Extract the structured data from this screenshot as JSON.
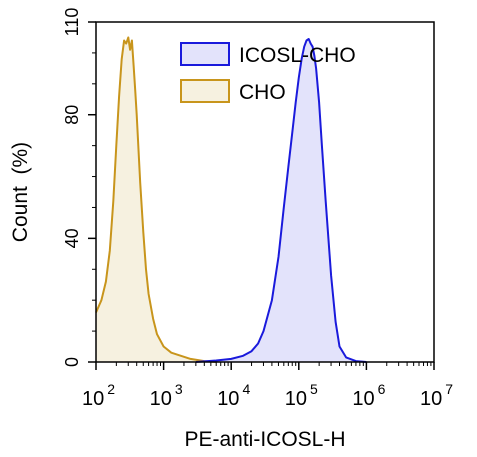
{
  "chart_data": {
    "type": "area",
    "title": "",
    "xlabel": "PE-anti-ICOSL-H",
    "ylabel": "Count  (%)",
    "x_scale": "log",
    "xlim": [
      100,
      10000000
    ],
    "ylim": [
      0,
      110
    ],
    "x_ticks": [
      {
        "base": "10",
        "exp": "2"
      },
      {
        "base": "10",
        "exp": "3"
      },
      {
        "base": "10",
        "exp": "4"
      },
      {
        "base": "10",
        "exp": "5"
      },
      {
        "base": "10",
        "exp": "6"
      },
      {
        "base": "10",
        "exp": "7"
      }
    ],
    "y_ticks": [
      "0",
      "40",
      "80",
      "110"
    ],
    "y_tick_values": [
      0,
      40,
      80,
      110
    ],
    "x_tick_values": [
      100,
      1000,
      10000,
      100000,
      1000000,
      10000000
    ],
    "grid": false,
    "legend_position": "top-right",
    "series": [
      {
        "name": "ICOSL-CHO",
        "line_color": "#1a1adc",
        "fill_color": "#e3e3fb",
        "x": [
          3000,
          6000,
          10000,
          15000,
          20000,
          25000,
          30000,
          40000,
          50000,
          60000,
          70000,
          80000,
          90000,
          100000,
          110000,
          120000,
          130000,
          140000,
          150000,
          160000,
          170000,
          180000,
          200000,
          220000,
          250000,
          300000,
          350000,
          400000,
          500000,
          700000,
          1000000
        ],
        "values": [
          0,
          0.5,
          1,
          2,
          3.5,
          6,
          10,
          20,
          34,
          50,
          63,
          74,
          84,
          92,
          98,
          102,
          104,
          104.5,
          103,
          102,
          99,
          95,
          84,
          70,
          52,
          28,
          13,
          5,
          1.5,
          0.3,
          0
        ]
      },
      {
        "name": "CHO",
        "line_color": "#c8951c",
        "fill_color": "#f6f1e0",
        "x": [
          100,
          120,
          140,
          160,
          180,
          200,
          220,
          240,
          260,
          280,
          300,
          320,
          340,
          360,
          380,
          400,
          450,
          500,
          550,
          600,
          700,
          800,
          1000,
          1300,
          1800,
          2500,
          4000,
          6000
        ],
        "values": [
          16,
          20,
          26,
          36,
          52,
          70,
          86,
          98,
          104,
          103,
          105,
          101,
          104,
          96,
          88,
          80,
          58,
          42,
          30,
          22,
          14,
          9,
          5,
          3,
          2,
          1,
          0.3,
          0
        ]
      }
    ]
  }
}
